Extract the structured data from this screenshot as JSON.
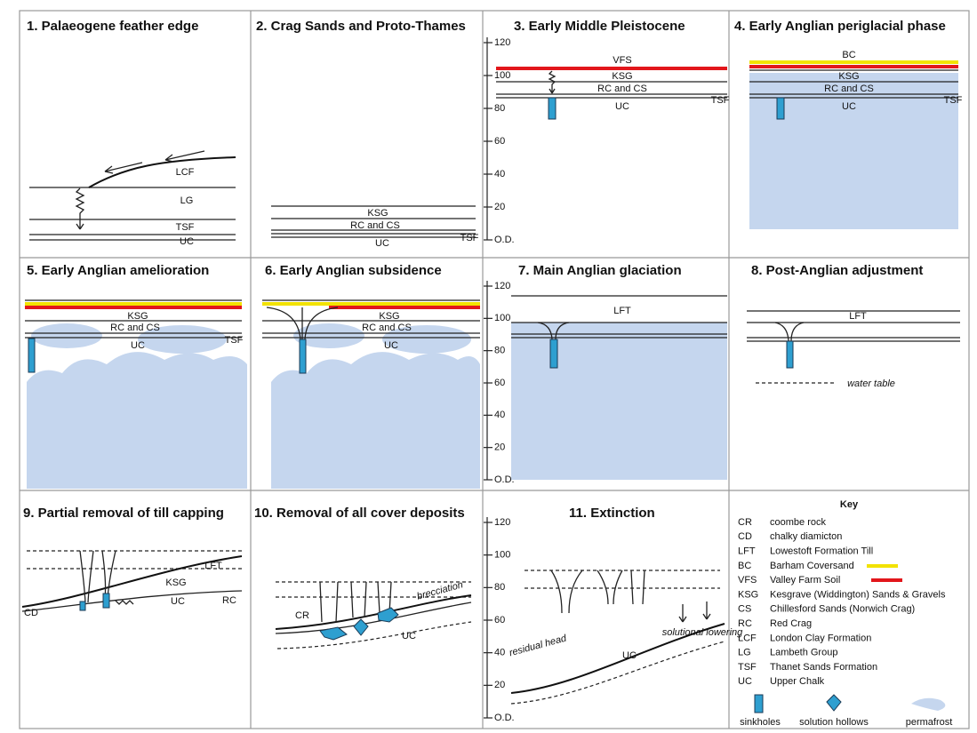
{
  "panels": [
    {
      "title": "1. Palaeogene feather edge",
      "labels": [
        "LCF",
        "LG",
        "TSF",
        "UC"
      ]
    },
    {
      "title": "2. Crag Sands and Proto-Thames",
      "labels": [
        "KSG",
        "RC and CS",
        "UC",
        "TSF"
      ]
    },
    {
      "title": "3. Early Middle Pleistocene",
      "labels": [
        "VFS",
        "KSG",
        "RC and CS",
        "UC",
        "TSF"
      ]
    },
    {
      "title": "4. Early Anglian periglacial phase",
      "labels": [
        "BC",
        "KSG",
        "RC and CS",
        "UC",
        "TSF"
      ]
    },
    {
      "title": "5. Early Anglian amelioration",
      "labels": [
        "KSG",
        "RC and CS",
        "UC",
        "TSF"
      ]
    },
    {
      "title": "6.  Early Anglian subsidence",
      "labels": [
        "KSG",
        "RC and CS",
        "UC"
      ]
    },
    {
      "title": "7.  Main Anglian glaciation",
      "labels": [
        "LFT"
      ]
    },
    {
      "title": "8. Post-Anglian adjustment",
      "labels": [
        "LFT",
        "water table"
      ]
    },
    {
      "title": "9. Partial removal of till capping",
      "labels": [
        "LFT",
        "KSG",
        "RC",
        "UC",
        "CD"
      ]
    },
    {
      "title": "10. Removal of all cover deposits",
      "labels": [
        "CR",
        "brecciation",
        "UC"
      ]
    },
    {
      "title": "11. Extinction",
      "labels": [
        "residual head",
        "UC",
        "solutional lowering"
      ]
    }
  ],
  "height_axis": [
    "120",
    "100",
    "80",
    "60",
    "40",
    "20",
    "O.D."
  ],
  "key": {
    "title": "Key",
    "entries": [
      {
        "code": "CR",
        "text": "coombe rock"
      },
      {
        "code": "CD",
        "text": "chalky diamicton"
      },
      {
        "code": "LFT",
        "text": "Lowestoft Formation Till"
      },
      {
        "code": "BC",
        "text": "Barham Coversand"
      },
      {
        "code": "VFS",
        "text": "Valley Farm Soil"
      },
      {
        "code": "KSG",
        "text": "Kesgrave (Widdington) Sands & Gravels"
      },
      {
        "code": "CS",
        "text": "Chillesford Sands (Norwich Crag)"
      },
      {
        "code": "RC",
        "text": "Red Crag"
      },
      {
        "code": "LCF",
        "text": "London Clay Formation"
      },
      {
        "code": "LG",
        "text": "Lambeth Group"
      },
      {
        "code": "TSF",
        "text": "Thanet Sands Formation"
      },
      {
        "code": "UC",
        "text": "Upper Chalk"
      }
    ],
    "symbols": [
      "sinkholes",
      "solution hollows",
      "permafrost"
    ]
  }
}
